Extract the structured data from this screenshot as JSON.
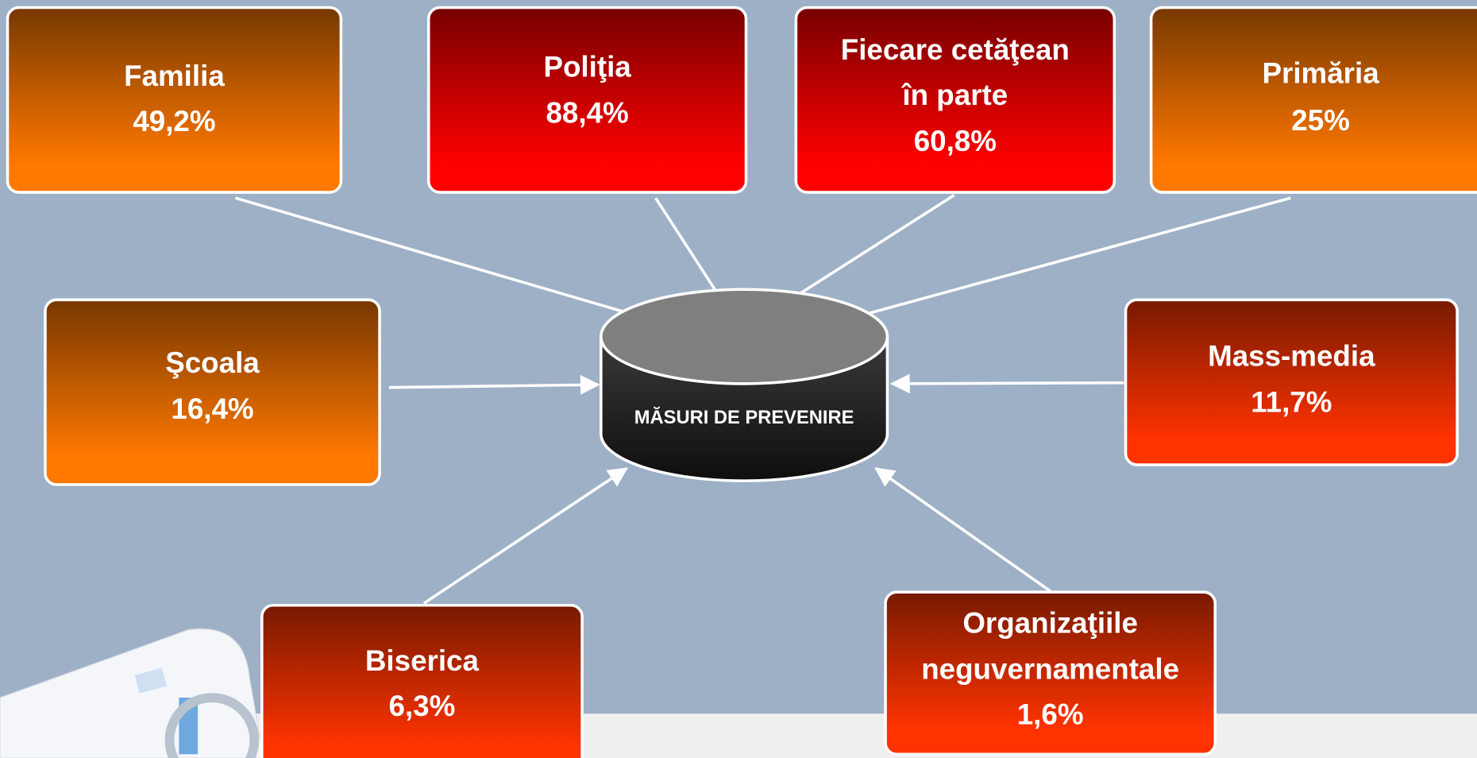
{
  "center": {
    "label": "MĂSURI DE PREVENIRE"
  },
  "nodes": [
    {
      "label": [
        "Familia"
      ],
      "value": "49,2%"
    },
    {
      "label": [
        "Poliţia"
      ],
      "value": "88,4%"
    },
    {
      "label": [
        "Fiecare cetăţean",
        "în parte"
      ],
      "value": "60,8%"
    },
    {
      "label": [
        "Primăria"
      ],
      "value": "25%"
    },
    {
      "label": [
        "Şcoala"
      ],
      "value": "16,4%"
    },
    {
      "label": [
        "Mass-media"
      ],
      "value": "11,7%"
    },
    {
      "label": [
        "Biserica"
      ],
      "value": "6,3%"
    },
    {
      "label": [
        "Organizaţiile",
        "neguvernamentale"
      ],
      "value": "1,6%"
    }
  ]
}
